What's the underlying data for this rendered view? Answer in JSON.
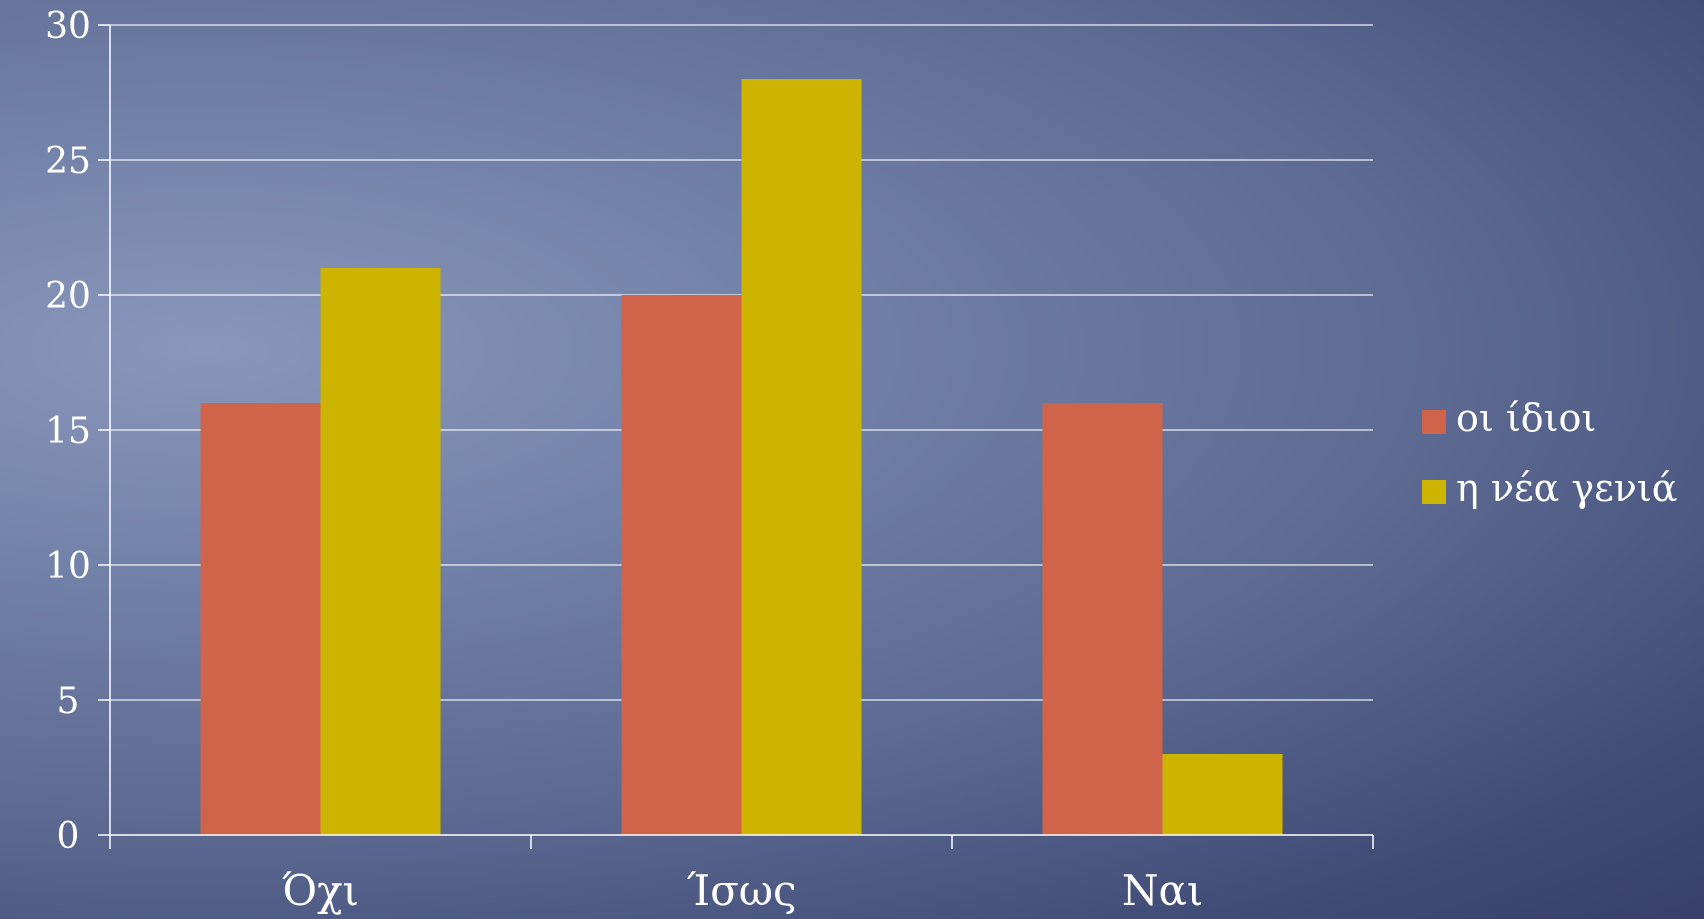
{
  "chart_data": {
    "type": "bar",
    "categories": [
      "Όχι",
      "Ίσως",
      "Ναι"
    ],
    "series": [
      {
        "name": "οι ίδιοι",
        "color": "#d0644b",
        "values": [
          16,
          20,
          16
        ]
      },
      {
        "name": "η νέα γενιά",
        "color": "#ccb400",
        "values": [
          21,
          28,
          3
        ]
      }
    ],
    "yticks": [
      "0",
      "5",
      "10",
      "15",
      "20",
      "25",
      "30"
    ],
    "ylim": [
      0,
      30
    ],
    "grid": true,
    "legend_position": "right",
    "title": "",
    "xlabel": "",
    "ylabel": ""
  }
}
